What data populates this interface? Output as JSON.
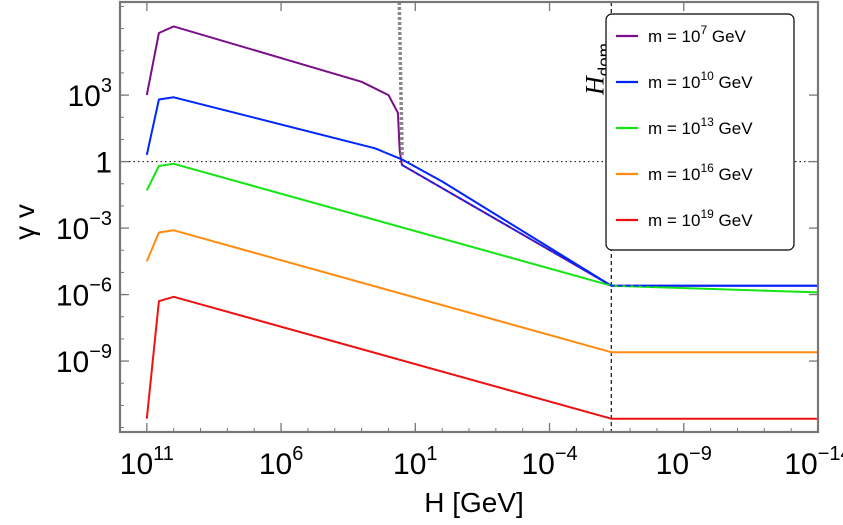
{
  "chart_data": {
    "type": "line",
    "title": "",
    "xlabel": "H [GeV]",
    "ylabel": "γ v",
    "x_scale": "log, reversed",
    "y_scale": "log",
    "xlim_log10": [
      12,
      -14
    ],
    "ylim_log10": [
      -12.2,
      7.2
    ],
    "x_ticks": [
      {
        "base": "10",
        "exp": "11",
        "log": 11
      },
      {
        "base": "10",
        "exp": "6",
        "log": 6
      },
      {
        "base": "10",
        "exp": "1",
        "log": 1
      },
      {
        "base": "10",
        "exp": "−4",
        "log": -4
      },
      {
        "base": "10",
        "exp": "−9",
        "log": -9
      },
      {
        "base": "10",
        "exp": "−14",
        "log": -14
      }
    ],
    "y_ticks": [
      {
        "base": "10",
        "exp": "3",
        "log": 3
      },
      {
        "base": "1",
        "exp": "",
        "log": 0
      },
      {
        "base": "10",
        "exp": "−3",
        "log": -3
      },
      {
        "base": "10",
        "exp": "−6",
        "log": -6
      },
      {
        "base": "10",
        "exp": "−9",
        "log": -9
      }
    ],
    "reference_lines": {
      "h_dom": {
        "label_main": "H",
        "label_sub": "dom",
        "x_log10": -6.3
      },
      "unit_velocity": {
        "y_log10": 0
      },
      "gray_dotted_transition": {
        "x_log10": 1.6
      }
    },
    "series": [
      {
        "name": "m = 10^7 GeV",
        "label_main": "m = 10",
        "label_exp": "7",
        "label_unit": " GeV",
        "color": "#7b0f8a",
        "points": [
          [
            11,
            3
          ],
          [
            10.55,
            5.8
          ],
          [
            10.0,
            6.1
          ],
          [
            3.0,
            3.6
          ],
          [
            2.0,
            3.0
          ],
          [
            1.65,
            2.2
          ],
          [
            1.58,
            0.5
          ],
          [
            1.5,
            -0.15
          ],
          [
            -6.3,
            -5.6
          ],
          [
            -14,
            -5.6
          ]
        ]
      },
      {
        "name": "m = 10^10 GeV",
        "label_main": "m = 10",
        "label_exp": "10",
        "label_unit": " GeV",
        "color": "#0026ff",
        "points": [
          [
            11,
            0.3
          ],
          [
            10.55,
            2.8
          ],
          [
            10.0,
            2.9
          ],
          [
            2.5,
            0.6
          ],
          [
            1.5,
            0.1
          ],
          [
            0.0,
            -0.9
          ],
          [
            -6.3,
            -5.6
          ],
          [
            -14,
            -5.6
          ]
        ]
      },
      {
        "name": "m = 10^13 GeV",
        "label_main": "m = 10",
        "label_exp": "13",
        "label_unit": " GeV",
        "color": "#14e614",
        "points": [
          [
            11,
            -1.3
          ],
          [
            10.55,
            -0.2
          ],
          [
            10.0,
            -0.1
          ],
          [
            -6.3,
            -5.6
          ],
          [
            -14,
            -5.9
          ]
        ]
      },
      {
        "name": "m = 10^16 GeV",
        "label_main": "m = 10",
        "label_exp": "16",
        "label_unit": " GeV",
        "color": "#ff8c10",
        "points": [
          [
            11,
            -4.5
          ],
          [
            10.55,
            -3.2
          ],
          [
            10.0,
            -3.1
          ],
          [
            -6.3,
            -8.6
          ],
          [
            -14,
            -8.6
          ]
        ]
      },
      {
        "name": "m = 10^19 GeV",
        "label_main": "m = 10",
        "label_exp": "19",
        "label_unit": " GeV",
        "color": "#ee1111",
        "points": [
          [
            11,
            -11.6
          ],
          [
            10.55,
            -6.3
          ],
          [
            10.0,
            -6.1
          ],
          [
            -6.3,
            -11.6
          ],
          [
            -14,
            -11.6
          ]
        ]
      }
    ],
    "blue_dashed_overlay": {
      "color": "#0026ff",
      "points": [
        [
          1.5,
          -0.15
        ],
        [
          -6.3,
          -5.6
        ],
        [
          -14,
          -5.6
        ]
      ]
    },
    "legend_position": "top-right"
  }
}
